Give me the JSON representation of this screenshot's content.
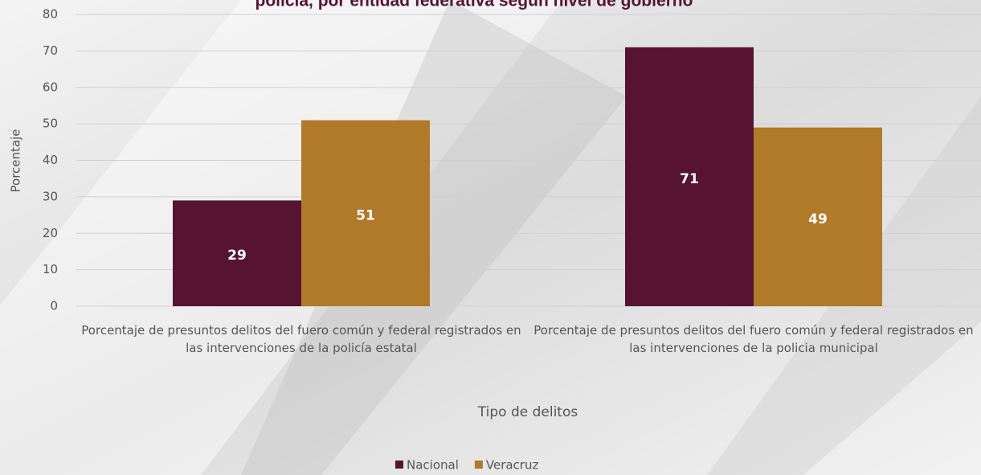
{
  "chart_data": {
    "type": "bar",
    "title": "policía, por entidad federativa según nivel de gobierno",
    "categories": [
      "Porcentaje de presuntos delitos del fuero común y federal registrados en las intervenciones de la policía estatal",
      "Porcentaje de presuntos delitos del fuero común y federal registrados en las intervenciones de la policia municipal"
    ],
    "series": [
      {
        "name": "Nacional",
        "color": "#561432",
        "values": [
          29,
          71
        ]
      },
      {
        "name": "Veracruz",
        "color": "#b07a2a",
        "values": [
          51,
          49
        ]
      }
    ],
    "ylim": [
      0,
      80
    ],
    "yticks": [
      0,
      10,
      20,
      30,
      40,
      50,
      60,
      70,
      80
    ],
    "y_label": "Porcentaje",
    "x_label": "Tipo de delitos",
    "grid": true,
    "legend": "bottom"
  }
}
